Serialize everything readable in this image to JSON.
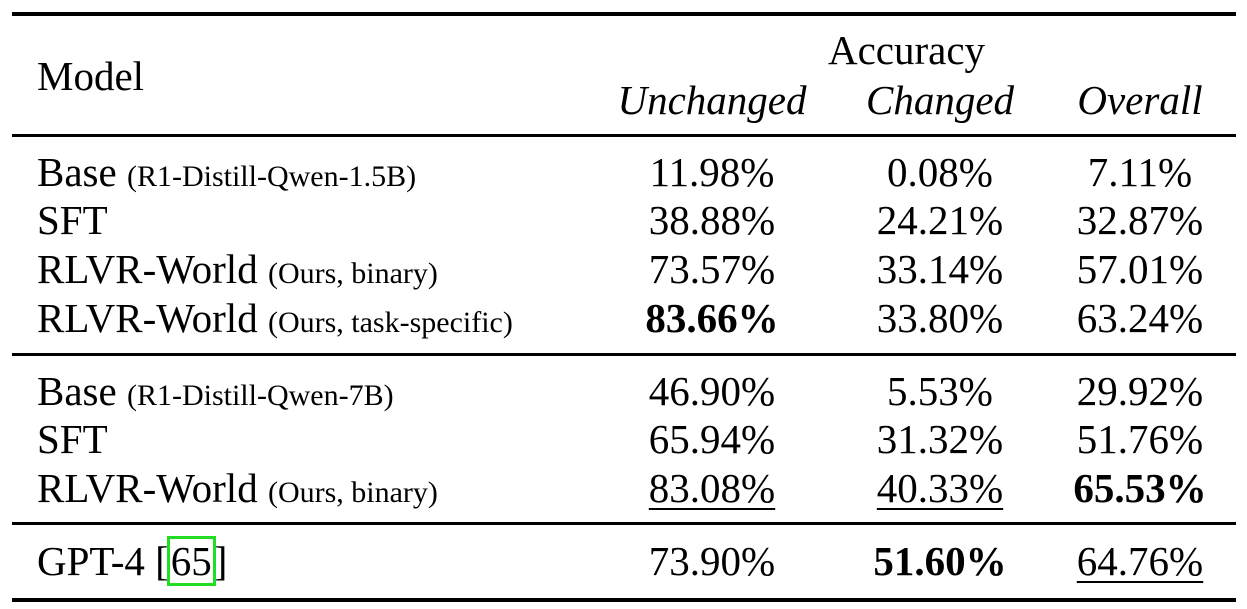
{
  "header": {
    "model": "Model",
    "group": "Accuracy",
    "columns": [
      "Unchanged",
      "Changed",
      "Overall"
    ]
  },
  "groups": [
    {
      "rows": [
        {
          "name": "Base",
          "note": "(R1-Distill-Qwen-1.5B)",
          "values": [
            "11.98%",
            "0.08%",
            "7.11%"
          ]
        },
        {
          "name": "SFT",
          "note": "",
          "values": [
            "38.88%",
            "24.21%",
            "32.87%"
          ]
        },
        {
          "name": "RLVR-World",
          "note": "(Ours, binary)",
          "values": [
            "73.57%",
            "33.14%",
            "57.01%"
          ]
        },
        {
          "name": "RLVR-World",
          "note": "(Ours, task-specific)",
          "values": [
            "83.66%",
            "33.80%",
            "63.24%"
          ]
        }
      ]
    },
    {
      "rows": [
        {
          "name": "Base",
          "note": "(R1-Distill-Qwen-7B)",
          "values": [
            "46.90%",
            "5.53%",
            "29.92%"
          ]
        },
        {
          "name": "SFT",
          "note": "",
          "values": [
            "65.94%",
            "31.32%",
            "51.76%"
          ]
        },
        {
          "name": "RLVR-World",
          "note": "(Ours, binary)",
          "values": [
            "83.08%",
            "40.33%",
            "65.53%"
          ]
        }
      ]
    },
    {
      "rows": [
        {
          "name": "GPT-4 [",
          "ref": "65",
          "name_after": "]",
          "values": [
            "73.90%",
            "51.60%",
            "64.76%"
          ]
        }
      ]
    }
  ],
  "styling": {
    "bold": [
      "0.3.0",
      "1.2.2",
      "2.0.1"
    ],
    "underline": [
      "1.2.0",
      "1.2.1",
      "2.0.2"
    ],
    "ref_box_color": "#22dd22"
  }
}
